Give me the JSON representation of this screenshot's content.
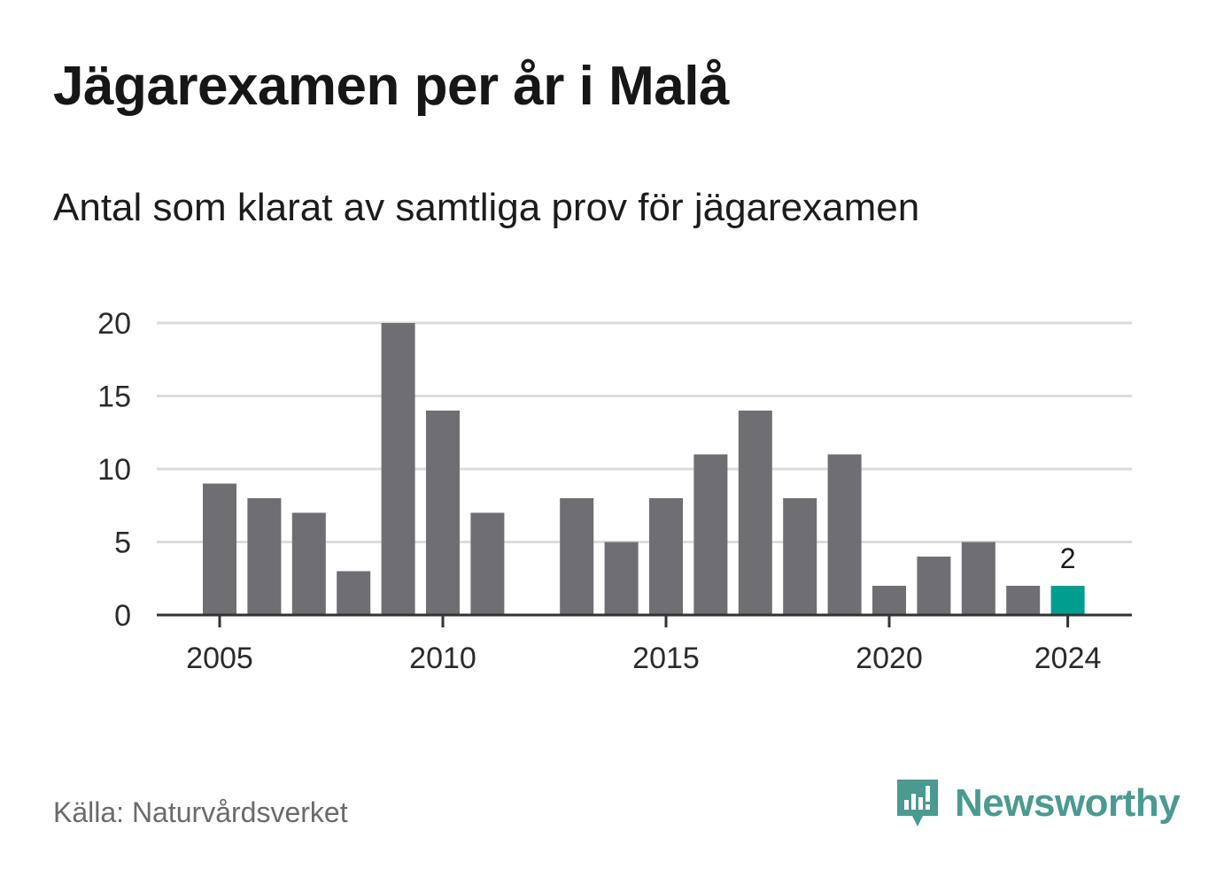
{
  "title": "Jägarexamen per år i Malå",
  "subtitle": "Antal som klarat av samtliga prov för jägarexamen",
  "source": "Källa: Naturvårdsverket",
  "brand": {
    "name": "Newsworthy",
    "icon": "newsworthy-logo-icon",
    "color": "#4a9a90"
  },
  "chart_data": {
    "type": "bar",
    "title": "Jägarexamen per år i Malå",
    "subtitle": "Antal som klarat av samtliga prov för jägarexamen",
    "x": [
      2005,
      2006,
      2007,
      2008,
      2009,
      2010,
      2011,
      2012,
      2013,
      2014,
      2015,
      2016,
      2017,
      2018,
      2019,
      2020,
      2021,
      2022,
      2023,
      2024
    ],
    "values": [
      9,
      8,
      7,
      3,
      20,
      14,
      7,
      null,
      8,
      5,
      8,
      11,
      14,
      8,
      11,
      2,
      4,
      5,
      2,
      2
    ],
    "highlight": {
      "x": 2024,
      "value": 2,
      "label": "2",
      "color": "#009e8f"
    },
    "bar_color": "#6e6e73",
    "xticks": [
      2005,
      2010,
      2015,
      2020,
      2024
    ],
    "yticks": [
      0,
      5,
      10,
      15,
      20
    ],
    "ylim": [
      0,
      20
    ],
    "grid": true,
    "legend": "none"
  }
}
